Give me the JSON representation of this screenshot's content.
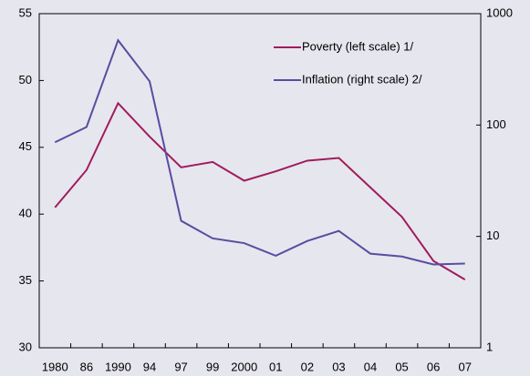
{
  "chart_data": {
    "type": "line",
    "categories": [
      "1980",
      "86",
      "1990",
      "94",
      "97",
      "99",
      "2000",
      "01",
      "02",
      "03",
      "04",
      "05",
      "06",
      "07"
    ],
    "series": [
      {
        "name": "Poverty (left scale) 1/",
        "color": "#a01c5c",
        "values": [
          40.5,
          43.3,
          48.3,
          45.8,
          43.5,
          43.9,
          42.5,
          43.2,
          44.0,
          44.2,
          42.0,
          39.8,
          36.5,
          35.1
        ]
      },
      {
        "name": "Inflation (right scale) 2/",
        "color": "#5a4ca0",
        "axis": "y2",
        "values": [
          70,
          96,
          577,
          247,
          13.8,
          9.6,
          8.7,
          6.7,
          9.1,
          11.2,
          7.0,
          6.6,
          5.6,
          5.7
        ]
      }
    ],
    "ylim": [
      30,
      55
    ],
    "yticks": [
      30,
      35,
      40,
      45,
      50,
      55
    ],
    "y2lim": [
      1,
      1000
    ],
    "y2ticks": [
      1,
      10,
      100,
      1000
    ],
    "y2log": true,
    "grid": false,
    "legend": "upper right"
  }
}
